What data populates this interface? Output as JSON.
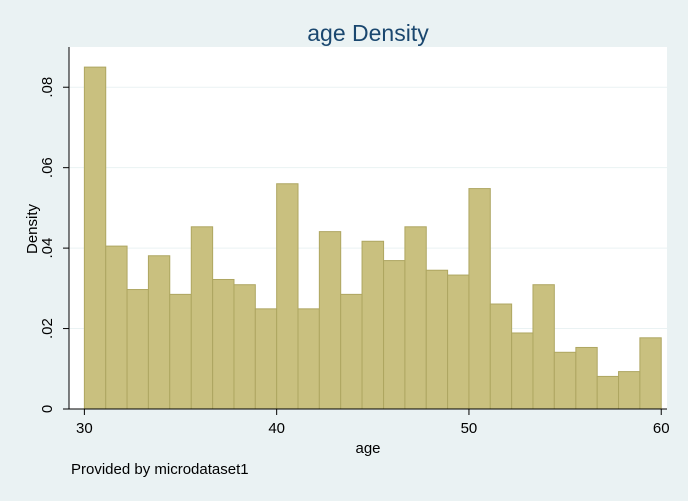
{
  "chart_data": {
    "type": "bar",
    "title": "age Density",
    "xlabel": "age",
    "ylabel": "Density",
    "xlim": [
      29.2,
      60.3
    ],
    "ylim": [
      0,
      0.09
    ],
    "x_ticks": [
      {
        "value": 30,
        "label": "30"
      },
      {
        "value": 40,
        "label": "40"
      },
      {
        "value": 50,
        "label": "50"
      },
      {
        "value": 60,
        "label": "60"
      }
    ],
    "y_ticks": [
      {
        "value": 0,
        "label": "0"
      },
      {
        "value": 0.02,
        "label": ".02"
      },
      {
        "value": 0.04,
        "label": ".04"
      },
      {
        "value": 0.06,
        "label": ".06"
      },
      {
        "value": 0.08,
        "label": ".08"
      }
    ],
    "grid": true,
    "bar_color": "#c9c07f",
    "bar_edge_color": "#aea661",
    "bins": [
      {
        "start": 30.0,
        "end": 31.11,
        "value": 0.085
      },
      {
        "start": 31.11,
        "end": 32.22,
        "value": 0.0405
      },
      {
        "start": 32.22,
        "end": 33.33,
        "value": 0.0297
      },
      {
        "start": 33.33,
        "end": 34.44,
        "value": 0.0381
      },
      {
        "start": 34.44,
        "end": 35.56,
        "value": 0.0285
      },
      {
        "start": 35.56,
        "end": 36.67,
        "value": 0.0453
      },
      {
        "start": 36.67,
        "end": 37.78,
        "value": 0.0322
      },
      {
        "start": 37.78,
        "end": 38.89,
        "value": 0.0309
      },
      {
        "start": 38.89,
        "end": 40.0,
        "value": 0.0249
      },
      {
        "start": 40.0,
        "end": 41.11,
        "value": 0.056
      },
      {
        "start": 41.11,
        "end": 42.22,
        "value": 0.0249
      },
      {
        "start": 42.22,
        "end": 43.33,
        "value": 0.0441
      },
      {
        "start": 43.33,
        "end": 44.44,
        "value": 0.0285
      },
      {
        "start": 44.44,
        "end": 45.56,
        "value": 0.0417
      },
      {
        "start": 45.56,
        "end": 46.67,
        "value": 0.0369
      },
      {
        "start": 46.67,
        "end": 47.78,
        "value": 0.0453
      },
      {
        "start": 47.78,
        "end": 48.89,
        "value": 0.0345
      },
      {
        "start": 48.89,
        "end": 50.0,
        "value": 0.0333
      },
      {
        "start": 50.0,
        "end": 51.11,
        "value": 0.0548
      },
      {
        "start": 51.11,
        "end": 52.22,
        "value": 0.0261
      },
      {
        "start": 52.22,
        "end": 53.33,
        "value": 0.0189
      },
      {
        "start": 53.33,
        "end": 54.44,
        "value": 0.0309
      },
      {
        "start": 54.44,
        "end": 55.56,
        "value": 0.0141
      },
      {
        "start": 55.56,
        "end": 56.67,
        "value": 0.0153
      },
      {
        "start": 56.67,
        "end": 57.78,
        "value": 0.0081
      },
      {
        "start": 57.78,
        "end": 58.89,
        "value": 0.0093
      },
      {
        "start": 58.89,
        "end": 60.0,
        "value": 0.0177
      }
    ]
  },
  "note": "Provided by microdataset1"
}
